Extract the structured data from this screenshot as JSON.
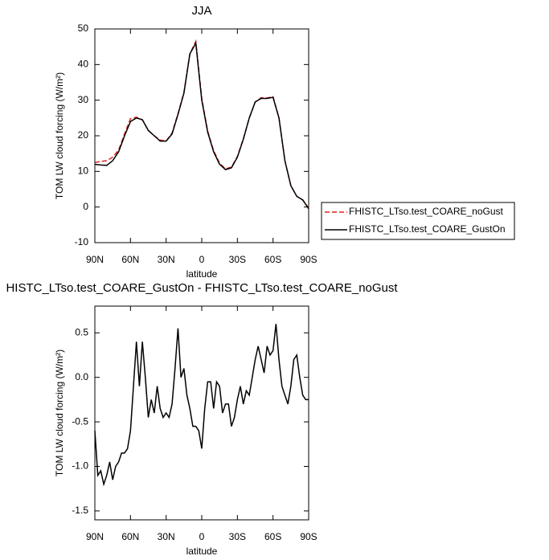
{
  "chart_data": [
    {
      "type": "line",
      "title": "JJA",
      "xlabel": "latitude",
      "ylabel": "TOM LW cloud forcing (W/m²)",
      "x": [
        90,
        85,
        80,
        75,
        70,
        65,
        60,
        55,
        50,
        45,
        40,
        35,
        30,
        25,
        20,
        15,
        10,
        5,
        0,
        -5,
        -10,
        -15,
        -20,
        -25,
        -30,
        -35,
        -40,
        -45,
        -50,
        -55,
        -60,
        -65,
        -70,
        -75,
        -80,
        -85,
        -90
      ],
      "series": [
        {
          "name": "FHISTC_LTso.test_COARE_noGust",
          "color": "#e0201b",
          "linestyle": "dashed",
          "values": [
            12.5,
            12.8,
            13,
            14,
            16,
            20.5,
            24.8,
            25.2,
            24.5,
            21.5,
            20,
            18.8,
            18.5,
            20.8,
            26.2,
            32.2,
            43,
            46.5,
            30.5,
            21.3,
            15.8,
            12.3,
            10.7,
            11.2,
            14.2,
            19.2,
            25,
            29.5,
            30.7,
            30.6,
            31,
            25,
            13,
            6,
            3,
            2,
            -0.3
          ]
        },
        {
          "name": "FHISTC_LTso.test_COARE_GustOn",
          "color": "#000000",
          "linestyle": "solid",
          "values": [
            12,
            11.8,
            11.7,
            13,
            15.5,
            20,
            24,
            25,
            24.5,
            21.5,
            20,
            18.5,
            18.5,
            20.5,
            26,
            32,
            43,
            46,
            30,
            21,
            15.5,
            12,
            10.5,
            11,
            14,
            19,
            25,
            29.5,
            30.5,
            30.5,
            30.8,
            25,
            13,
            6,
            3,
            2,
            -0.5
          ]
        }
      ],
      "xlim": [
        90,
        -90
      ],
      "xticks": [
        {
          "value": 90,
          "label": "90N"
        },
        {
          "value": 60,
          "label": "60N"
        },
        {
          "value": 30,
          "label": "30N"
        },
        0,
        {
          "value": -30,
          "label": "30S"
        },
        {
          "value": -60,
          "label": "60S"
        },
        {
          "value": -90,
          "label": "90S"
        }
      ],
      "ylim": [
        -10,
        50
      ],
      "yticks": [
        -10,
        0,
        10,
        20,
        30,
        40,
        50
      ],
      "legend": "right"
    },
    {
      "type": "line",
      "title": "HISTC_LTso.test_COARE_GustOn - FHISTC_LTso.test_COARE_noGust",
      "xlabel": "latitude",
      "ylabel": "TOM LW cloud forcing (W/m²)",
      "x": [
        90,
        87.5,
        85,
        82.5,
        80,
        77.5,
        75,
        72.5,
        70,
        67.5,
        65,
        62.5,
        60,
        57.5,
        55,
        52.5,
        50,
        47.5,
        45,
        42.5,
        40,
        37.5,
        35,
        32.5,
        30,
        27.5,
        25,
        22.5,
        20,
        17.5,
        15,
        12.5,
        10,
        7.5,
        5,
        2.5,
        0,
        -2.5,
        -5,
        -7.5,
        -10,
        -12.5,
        -15,
        -17.5,
        -20,
        -22.5,
        -25,
        -27.5,
        -30,
        -32.5,
        -35,
        -37.5,
        -40,
        -42.5,
        -45,
        -47.5,
        -50,
        -52.5,
        -55,
        -57.5,
        -60,
        -62.5,
        -65,
        -67.5,
        -70,
        -72.5,
        -75,
        -77.5,
        -80,
        -82.5,
        -85,
        -87.5,
        -90
      ],
      "series": [
        {
          "color": "#000000",
          "linestyle": "solid",
          "values": [
            -0.6,
            -1.1,
            -1.05,
            -1.2,
            -1.1,
            -0.95,
            -1.15,
            -1.0,
            -0.95,
            -0.85,
            -0.85,
            -0.8,
            -0.6,
            -0.1,
            0.4,
            -0.1,
            0.4,
            0.0,
            -0.45,
            -0.25,
            -0.4,
            -0.1,
            -0.35,
            -0.45,
            -0.4,
            -0.45,
            -0.3,
            0.1,
            0.55,
            0.0,
            0.1,
            -0.2,
            -0.35,
            -0.55,
            -0.55,
            -0.6,
            -0.8,
            -0.35,
            -0.05,
            -0.05,
            -0.35,
            -0.05,
            -0.1,
            -0.4,
            -0.3,
            -0.3,
            -0.55,
            -0.45,
            -0.25,
            -0.1,
            -0.3,
            -0.15,
            -0.2,
            0.0,
            0.2,
            0.35,
            0.2,
            0.05,
            0.35,
            0.25,
            0.3,
            0.6,
            0.2,
            -0.1,
            -0.2,
            -0.3,
            -0.1,
            0.2,
            0.25,
            0.0,
            -0.2,
            -0.25,
            -0.25
          ]
        }
      ],
      "xlim": [
        90,
        -90
      ],
      "xticks": [
        {
          "value": 90,
          "label": "90N"
        },
        {
          "value": 60,
          "label": "60N"
        },
        {
          "value": 30,
          "label": "30N"
        },
        0,
        {
          "value": -30,
          "label": "30S"
        },
        {
          "value": -60,
          "label": "60S"
        },
        {
          "value": -90,
          "label": "90S"
        }
      ],
      "ylim": [
        -1.6,
        0.8
      ],
      "yticks": [
        -1.5,
        {
          "value": -1,
          "label": "-1.0"
        },
        -0.5,
        {
          "value": 0,
          "label": "0.0"
        },
        0.5
      ]
    }
  ]
}
